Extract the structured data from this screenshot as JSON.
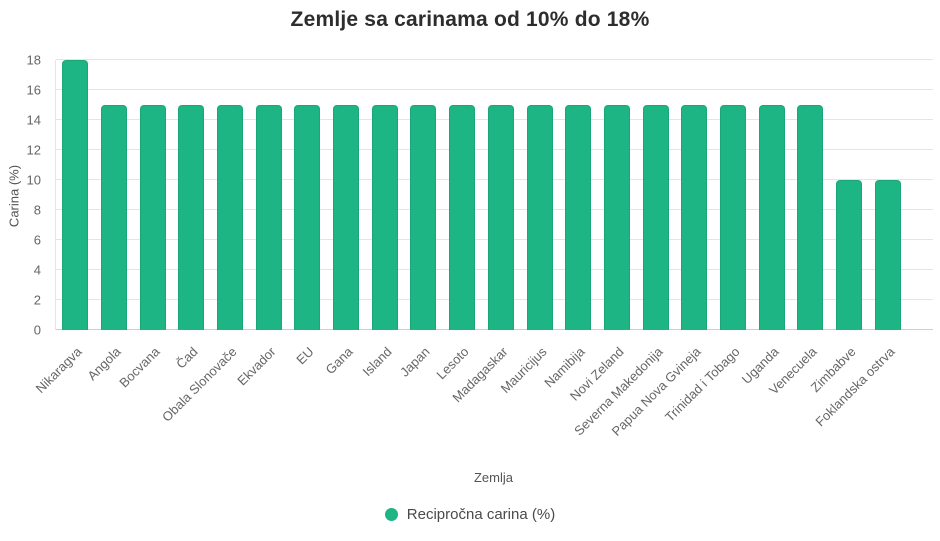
{
  "chart_data": {
    "type": "bar",
    "title": "Zemlje sa carinama od 10% do 18%",
    "xlabel": "Zemlja",
    "ylabel": "Carina (%)",
    "ylim": [
      0,
      18
    ],
    "ytick_step": 2,
    "grid": true,
    "legend": {
      "position": "bottom",
      "label": "Recipročna carina (%)",
      "marker_color": "#1db584"
    },
    "bar_color": "#1db584",
    "categories": [
      "Nikaragva",
      "Angola",
      "Bocvana",
      "Čad",
      "Obala Slonovače",
      "Ekvador",
      "EU",
      "Gana",
      "Island",
      "Japan",
      "Lesoto",
      "Madagaskar",
      "Mauricijus",
      "Namibija",
      "Novi Zeland",
      "Severna Makedonija",
      "Papua Nova Gvineja",
      "Trinidad i Tobago",
      "Uganda",
      "Venecuela",
      "Zimbabve",
      "Foklandska ostrva"
    ],
    "values": [
      18,
      15,
      15,
      15,
      15,
      15,
      15,
      15,
      15,
      15,
      15,
      15,
      15,
      15,
      15,
      15,
      15,
      15,
      15,
      15,
      10,
      10
    ]
  }
}
